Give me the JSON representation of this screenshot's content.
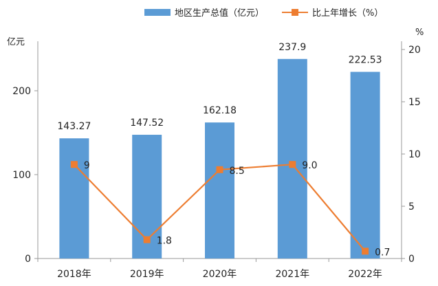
{
  "chart_data": {
    "type": "bar",
    "categories": [
      "2018年",
      "2019年",
      "2020年",
      "2021年",
      "2022年"
    ],
    "series": [
      {
        "name": "地区生产总值（亿元）",
        "type": "bar",
        "axis": "left",
        "values": [
          143.27,
          147.52,
          162.18,
          237.9,
          222.53
        ],
        "labels": [
          "143.27",
          "147.52",
          "162.18",
          "237.9",
          "222.53"
        ],
        "color": "#5b9bd5"
      },
      {
        "name": "比上年增长（%）",
        "type": "line",
        "axis": "right",
        "values": [
          9,
          1.8,
          8.5,
          9.0,
          0.7
        ],
        "labels": [
          "9",
          "1.8",
          "8.5",
          "9.0",
          "0.7"
        ],
        "color": "#ed7d31"
      }
    ],
    "y_left": {
      "label": "亿元",
      "range": [
        0,
        200
      ],
      "ticks": [
        "0",
        "100",
        "200"
      ]
    },
    "y_right": {
      "label": "%",
      "range": [
        0,
        20
      ],
      "ticks": [
        "0",
        "5",
        "10",
        "15",
        "20"
      ]
    },
    "legend_position": "top",
    "grid": false
  }
}
